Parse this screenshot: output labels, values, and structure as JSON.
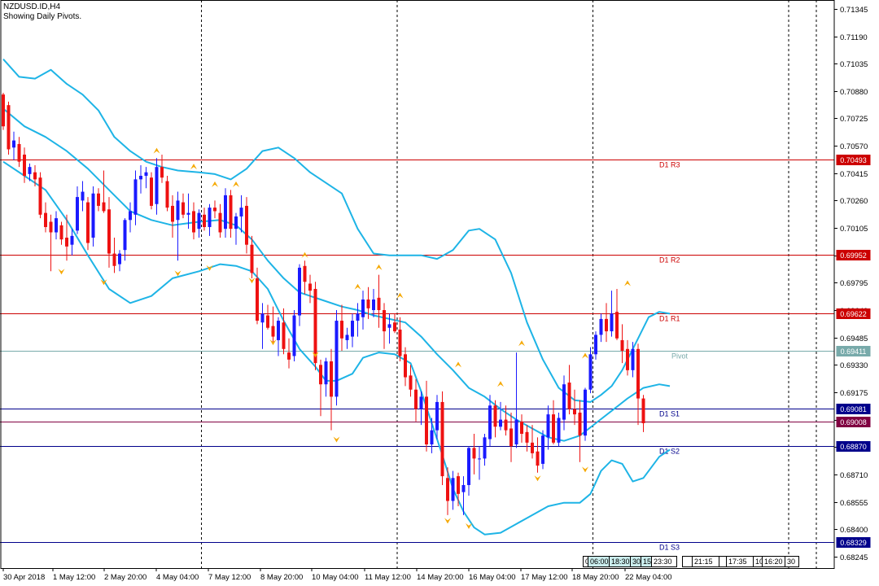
{
  "header": {
    "symbol_line": "NZDUSD.ID,H4",
    "subtitle": "Showing Daily Pivots."
  },
  "colors": {
    "bull": "#1a1aff",
    "bear": "#ee1111",
    "band": "#1eb4e6",
    "resistance": "#cc0000",
    "support": "#00008b",
    "pivot": "#78aaaa",
    "current": "#800040",
    "fractal": "#f5a800"
  },
  "chart_data": {
    "type": "candlestick",
    "y_axis": {
      "min": 0.6818,
      "max": 0.71395,
      "ticks": [
        "0.71345",
        "0.71190",
        "0.71035",
        "0.70880",
        "0.70725",
        "0.70570",
        "0.70415",
        "0.70260",
        "0.70105",
        "0.69950",
        "0.69795",
        "0.69640",
        "0.69485",
        "0.69330",
        "0.69175",
        "0.69020",
        "0.68865",
        "0.68710",
        "0.68555",
        "0.68400",
        "0.68245"
      ]
    },
    "x_axis": {
      "labels": [
        "30 Apr 2018",
        "1 May 12:00",
        "2 May 20:00",
        "4 May 04:00",
        "7 May 12:00",
        "8 May 20:00",
        "10 May 04:00",
        "11 May 12:00",
        "14 May 20:00",
        "16 May 04:00",
        "17 May 12:00",
        "18 May 20:00",
        "22 May 04:00"
      ],
      "day_separators_bar_index": [
        37,
        74,
        111,
        148
      ]
    },
    "pivot_levels": [
      {
        "name": "D1 R3",
        "value": "0.70493",
        "kind": "resistance"
      },
      {
        "name": "D1 R2",
        "value": "0.69952",
        "kind": "resistance"
      },
      {
        "name": "D1 R1",
        "value": "0.69622",
        "kind": "resistance"
      },
      {
        "name": "Pivot",
        "value": "0.69411",
        "kind": "pivot"
      },
      {
        "name": "D1 S1",
        "value": "0.69081",
        "kind": "support"
      },
      {
        "name": "D1 S2",
        "value": "0.68870",
        "kind": "support"
      },
      {
        "name": "D1 S3",
        "value": "0.68329",
        "kind": "support"
      }
    ],
    "current_price": "0.69008",
    "candles": [
      [
        0.7086,
        0.7087,
        0.7066,
        0.7068
      ],
      [
        0.708,
        0.7082,
        0.7052,
        0.7055
      ],
      [
        0.7056,
        0.7065,
        0.7049,
        0.706
      ],
      [
        0.7058,
        0.7062,
        0.7045,
        0.7048
      ],
      [
        0.7052,
        0.7056,
        0.7036,
        0.704
      ],
      [
        0.7041,
        0.7047,
        0.7037,
        0.7045
      ],
      [
        0.7042,
        0.7046,
        0.7034,
        0.7038
      ],
      [
        0.7039,
        0.7042,
        0.7016,
        0.7018
      ],
      [
        0.7019,
        0.7025,
        0.7008,
        0.7011
      ],
      [
        0.7014,
        0.7018,
        0.6986,
        0.7008
      ],
      [
        0.7008,
        0.702,
        0.7004,
        0.7016
      ],
      [
        0.7012,
        0.7014,
        0.7001,
        0.7004
      ],
      [
        0.7005,
        0.7018,
        0.6992,
        0.7
      ],
      [
        0.7001,
        0.701,
        0.6995,
        0.7006
      ],
      [
        0.7009,
        0.7034,
        0.7007,
        0.7028
      ],
      [
        0.7026,
        0.7037,
        0.702,
        0.7031
      ],
      [
        0.7025,
        0.7028,
        0.6998,
        0.7002
      ],
      [
        0.7005,
        0.7034,
        0.7,
        0.703
      ],
      [
        0.703,
        0.7033,
        0.702,
        0.7023
      ],
      [
        0.7025,
        0.7043,
        0.7019,
        0.702
      ],
      [
        0.7021,
        0.7028,
        0.6988,
        0.6996
      ],
      [
        0.6996,
        0.7005,
        0.6985,
        0.6989
      ],
      [
        0.699,
        0.6998,
        0.6986,
        0.6996
      ],
      [
        0.6998,
        0.7016,
        0.6992,
        0.7015
      ],
      [
        0.7015,
        0.7025,
        0.7008,
        0.702
      ],
      [
        0.7018,
        0.7043,
        0.7012,
        0.7038
      ],
      [
        0.7038,
        0.7046,
        0.703,
        0.704
      ],
      [
        0.704,
        0.7045,
        0.7033,
        0.7042
      ],
      [
        0.7039,
        0.7042,
        0.7021,
        0.7023
      ],
      [
        0.7024,
        0.705,
        0.7018,
        0.7045
      ],
      [
        0.7045,
        0.7052,
        0.7036,
        0.7039
      ],
      [
        0.7037,
        0.704,
        0.702,
        0.7022
      ],
      [
        0.7023,
        0.7029,
        0.7005,
        0.7014
      ],
      [
        0.7015,
        0.7031,
        0.6992,
        0.7026
      ],
      [
        0.7025,
        0.703,
        0.7016,
        0.7018
      ],
      [
        0.7018,
        0.703,
        0.701,
        0.7019
      ],
      [
        0.702,
        0.7025,
        0.7004,
        0.7008
      ],
      [
        0.701,
        0.7021,
        0.7005,
        0.7019
      ],
      [
        0.7018,
        0.7022,
        0.7009,
        0.7011
      ],
      [
        0.7011,
        0.7024,
        0.7006,
        0.7022
      ],
      [
        0.7022,
        0.7026,
        0.7016,
        0.702
      ],
      [
        0.7019,
        0.7024,
        0.7005,
        0.7008
      ],
      [
        0.701,
        0.7033,
        0.7005,
        0.7029
      ],
      [
        0.7029,
        0.7032,
        0.7005,
        0.701
      ],
      [
        0.701,
        0.7019,
        0.7001,
        0.7017
      ],
      [
        0.7017,
        0.7029,
        0.7008,
        0.7022
      ],
      [
        0.7023,
        0.7028,
        0.6996,
        0.7001
      ],
      [
        0.7001,
        0.7006,
        0.6982,
        0.6985
      ],
      [
        0.6982,
        0.6988,
        0.6956,
        0.6958
      ],
      [
        0.6957,
        0.6968,
        0.6942,
        0.6962
      ],
      [
        0.6961,
        0.6967,
        0.6953,
        0.6954
      ],
      [
        0.6955,
        0.6966,
        0.6946,
        0.6949
      ],
      [
        0.6947,
        0.696,
        0.6938,
        0.6958
      ],
      [
        0.6957,
        0.6965,
        0.6939,
        0.6942
      ],
      [
        0.694,
        0.6948,
        0.6931,
        0.6936
      ],
      [
        0.6938,
        0.6964,
        0.6935,
        0.6961
      ],
      [
        0.6961,
        0.699,
        0.6955,
        0.6988
      ],
      [
        0.6989,
        0.6992,
        0.6973,
        0.698
      ],
      [
        0.6979,
        0.6984,
        0.6968,
        0.6975
      ],
      [
        0.6976,
        0.698,
        0.693,
        0.6934
      ],
      [
        0.6933,
        0.6936,
        0.6904,
        0.6922
      ],
      [
        0.6922,
        0.6937,
        0.6915,
        0.6935
      ],
      [
        0.6935,
        0.6942,
        0.6896,
        0.6915
      ],
      [
        0.6915,
        0.6964,
        0.691,
        0.6958
      ],
      [
        0.6958,
        0.6967,
        0.6941,
        0.6948
      ],
      [
        0.6947,
        0.6954,
        0.6942,
        0.695
      ],
      [
        0.6949,
        0.6962,
        0.6943,
        0.6958
      ],
      [
        0.6958,
        0.6968,
        0.6949,
        0.6962
      ],
      [
        0.696,
        0.6975,
        0.6953,
        0.697
      ],
      [
        0.697,
        0.6977,
        0.6959,
        0.6965
      ],
      [
        0.6964,
        0.6976,
        0.696,
        0.697
      ],
      [
        0.6971,
        0.6984,
        0.6954,
        0.6964
      ],
      [
        0.6964,
        0.6968,
        0.6942,
        0.6952
      ],
      [
        0.6954,
        0.6962,
        0.6945,
        0.6956
      ],
      [
        0.6957,
        0.6962,
        0.6951,
        0.6952
      ],
      [
        0.6953,
        0.696,
        0.6935,
        0.6938
      ],
      [
        0.6939,
        0.6943,
        0.6921,
        0.6926
      ],
      [
        0.6927,
        0.6933,
        0.6915,
        0.6919
      ],
      [
        0.6919,
        0.6925,
        0.6901,
        0.6908
      ],
      [
        0.6908,
        0.6918,
        0.6899,
        0.6915
      ],
      [
        0.6915,
        0.6924,
        0.6884,
        0.6888
      ],
      [
        0.6888,
        0.6903,
        0.6883,
        0.6896
      ],
      [
        0.6896,
        0.6916,
        0.6891,
        0.6912
      ],
      [
        0.6912,
        0.6918,
        0.6865,
        0.687
      ],
      [
        0.6869,
        0.6875,
        0.6848,
        0.6856
      ],
      [
        0.6856,
        0.6873,
        0.6851,
        0.6869
      ],
      [
        0.687,
        0.6872,
        0.6853,
        0.686
      ],
      [
        0.6861,
        0.687,
        0.6848,
        0.6865
      ],
      [
        0.6865,
        0.6887,
        0.6859,
        0.6886
      ],
      [
        0.6886,
        0.6894,
        0.6871,
        0.688
      ],
      [
        0.688,
        0.6887,
        0.6868,
        0.688
      ],
      [
        0.688,
        0.6894,
        0.6876,
        0.6892
      ],
      [
        0.6891,
        0.6916,
        0.6887,
        0.691
      ],
      [
        0.691,
        0.6913,
        0.6892,
        0.6898
      ],
      [
        0.6898,
        0.6912,
        0.6896,
        0.6902
      ],
      [
        0.6902,
        0.691,
        0.6893,
        0.6896
      ],
      [
        0.6897,
        0.6906,
        0.6878,
        0.6887
      ],
      [
        0.6888,
        0.694,
        0.6886,
        0.6902
      ],
      [
        0.6901,
        0.6905,
        0.6889,
        0.6894
      ],
      [
        0.6895,
        0.6899,
        0.6884,
        0.6889
      ],
      [
        0.6889,
        0.6899,
        0.688,
        0.6883
      ],
      [
        0.6884,
        0.6892,
        0.6872,
        0.6876
      ],
      [
        0.6877,
        0.6896,
        0.6874,
        0.6893
      ],
      [
        0.6892,
        0.691,
        0.6885,
        0.6905
      ],
      [
        0.6905,
        0.6913,
        0.6888,
        0.6889
      ],
      [
        0.6889,
        0.6906,
        0.6887,
        0.6903
      ],
      [
        0.6902,
        0.6927,
        0.6896,
        0.6922
      ],
      [
        0.6923,
        0.6933,
        0.6905,
        0.6908
      ],
      [
        0.6908,
        0.6919,
        0.6899,
        0.6905
      ],
      [
        0.6906,
        0.6913,
        0.6878,
        0.6893
      ],
      [
        0.6893,
        0.692,
        0.689,
        0.6919
      ],
      [
        0.6919,
        0.6943,
        0.6917,
        0.6939
      ],
      [
        0.6939,
        0.6952,
        0.6936,
        0.695
      ],
      [
        0.695,
        0.6962,
        0.6946,
        0.6959
      ],
      [
        0.6959,
        0.6968,
        0.6946,
        0.6952
      ],
      [
        0.6952,
        0.6975,
        0.6949,
        0.6962
      ],
      [
        0.6963,
        0.6976,
        0.6947,
        0.6948
      ],
      [
        0.6947,
        0.6956,
        0.6934,
        0.6941
      ],
      [
        0.6942,
        0.6947,
        0.6927,
        0.693
      ],
      [
        0.693,
        0.6946,
        0.6926,
        0.6942
      ],
      [
        0.6942,
        0.6945,
        0.6899,
        0.6914
      ],
      [
        0.6914,
        0.6916,
        0.6895,
        0.69
      ]
    ],
    "bollinger": {
      "upper": [
        [
          0,
          0.7106
        ],
        [
          3,
          0.7096
        ],
        [
          6,
          0.7095
        ],
        [
          9,
          0.71
        ],
        [
          12,
          0.7092
        ],
        [
          15,
          0.7086
        ],
        [
          18,
          0.7077
        ],
        [
          21,
          0.7062
        ],
        [
          24,
          0.7054
        ],
        [
          27,
          0.7048
        ],
        [
          30,
          0.7045
        ],
        [
          33,
          0.7043
        ],
        [
          37,
          0.7042
        ],
        [
          40,
          0.7041
        ],
        [
          43,
          0.7038
        ],
        [
          46,
          0.7044
        ],
        [
          49,
          0.7054
        ],
        [
          52,
          0.7056
        ],
        [
          55,
          0.705
        ],
        [
          58,
          0.7042
        ],
        [
          61,
          0.7036
        ],
        [
          64,
          0.703
        ],
        [
          67,
          0.701
        ],
        [
          70,
          0.6996
        ],
        [
          73,
          0.6995
        ],
        [
          76,
          0.6995
        ],
        [
          79,
          0.6995
        ],
        [
          82,
          0.6993
        ],
        [
          85,
          0.6998
        ],
        [
          88,
          0.7009
        ],
        [
          90,
          0.701
        ],
        [
          93,
          0.7004
        ],
        [
          96,
          0.6985
        ],
        [
          99,
          0.6957
        ],
        [
          102,
          0.6936
        ],
        [
          105,
          0.692
        ],
        [
          108,
          0.6913
        ],
        [
          111,
          0.6912
        ],
        [
          113,
          0.6916
        ],
        [
          115,
          0.6921
        ],
        [
          117,
          0.693
        ],
        [
          120,
          0.6948
        ],
        [
          122,
          0.696
        ],
        [
          124,
          0.6963
        ],
        [
          126,
          0.6962
        ]
      ],
      "middle": [
        [
          0,
          0.7078
        ],
        [
          4,
          0.7068
        ],
        [
          8,
          0.7062
        ],
        [
          12,
          0.7054
        ],
        [
          16,
          0.7044
        ],
        [
          20,
          0.7032
        ],
        [
          24,
          0.702
        ],
        [
          28,
          0.7015
        ],
        [
          32,
          0.7012
        ],
        [
          37,
          0.7014
        ],
        [
          41,
          0.7015
        ],
        [
          44,
          0.7012
        ],
        [
          47,
          0.7004
        ],
        [
          50,
          0.6992
        ],
        [
          53,
          0.6982
        ],
        [
          56,
          0.6974
        ],
        [
          60,
          0.697
        ],
        [
          64,
          0.6966
        ],
        [
          67,
          0.6964
        ],
        [
          70,
          0.6961
        ],
        [
          73,
          0.6959
        ],
        [
          76,
          0.6957
        ],
        [
          79,
          0.6949
        ],
        [
          82,
          0.6939
        ],
        [
          85,
          0.693
        ],
        [
          88,
          0.692
        ],
        [
          91,
          0.6915
        ],
        [
          94,
          0.6908
        ],
        [
          97,
          0.6902
        ],
        [
          100,
          0.6897
        ],
        [
          103,
          0.6892
        ],
        [
          106,
          0.689
        ],
        [
          109,
          0.6893
        ],
        [
          112,
          0.69
        ],
        [
          115,
          0.6907
        ],
        [
          118,
          0.6914
        ],
        [
          121,
          0.692
        ],
        [
          124,
          0.6922
        ],
        [
          126,
          0.6921
        ]
      ],
      "lower": [
        [
          0,
          0.7048
        ],
        [
          4,
          0.704
        ],
        [
          8,
          0.7032
        ],
        [
          12,
          0.7015
        ],
        [
          16,
          0.6995
        ],
        [
          20,
          0.6976
        ],
        [
          24,
          0.6968
        ],
        [
          28,
          0.6972
        ],
        [
          32,
          0.6982
        ],
        [
          37,
          0.6986
        ],
        [
          41,
          0.699
        ],
        [
          44,
          0.6989
        ],
        [
          47,
          0.6986
        ],
        [
          50,
          0.6976
        ],
        [
          53,
          0.6958
        ],
        [
          56,
          0.6942
        ],
        [
          59,
          0.6932
        ],
        [
          61,
          0.6924
        ],
        [
          63,
          0.6924
        ],
        [
          66,
          0.6928
        ],
        [
          68,
          0.6937
        ],
        [
          71,
          0.694
        ],
        [
          74,
          0.6939
        ],
        [
          77,
          0.6934
        ],
        [
          79,
          0.6918
        ],
        [
          81,
          0.69
        ],
        [
          83,
          0.6882
        ],
        [
          85,
          0.6863
        ],
        [
          87,
          0.685
        ],
        [
          89,
          0.6841
        ],
        [
          91,
          0.6837
        ],
        [
          94,
          0.6838
        ],
        [
          97,
          0.6843
        ],
        [
          100,
          0.6848
        ],
        [
          103,
          0.6853
        ],
        [
          106,
          0.6855
        ],
        [
          109,
          0.6855
        ],
        [
          111,
          0.686
        ],
        [
          113,
          0.6873
        ],
        [
          115,
          0.6879
        ],
        [
          117,
          0.6877
        ],
        [
          119,
          0.6867
        ],
        [
          121,
          0.6869
        ],
        [
          124,
          0.6881
        ],
        [
          126,
          0.6885
        ]
      ]
    },
    "fractals_up": [
      [
        29,
        0.7054
      ],
      [
        36,
        0.7045
      ],
      [
        40,
        0.7035
      ],
      [
        44,
        0.7035
      ],
      [
        57,
        0.6995
      ],
      [
        67,
        0.6977
      ],
      [
        71,
        0.6988
      ],
      [
        75,
        0.6972
      ],
      [
        86,
        0.6933
      ],
      [
        94,
        0.6922
      ],
      [
        98,
        0.6945
      ],
      [
        110,
        0.6938
      ],
      [
        118,
        0.6979
      ]
    ],
    "fractals_down": [
      [
        11,
        0.6986
      ],
      [
        19,
        0.698
      ],
      [
        33,
        0.6985
      ],
      [
        39,
        0.6988
      ],
      [
        47,
        0.6981
      ],
      [
        51,
        0.6946
      ],
      [
        59,
        0.6939
      ],
      [
        63,
        0.6891
      ],
      [
        84,
        0.6845
      ],
      [
        88,
        0.6842
      ],
      [
        101,
        0.6869
      ],
      [
        110,
        0.6874
      ]
    ],
    "session_boxes": [
      "0",
      "06:00",
      "18:30",
      "30",
      "15:",
      "23:30",
      "",
      "21:15",
      "",
      "17:35",
      "10",
      "16:20",
      "30"
    ]
  }
}
